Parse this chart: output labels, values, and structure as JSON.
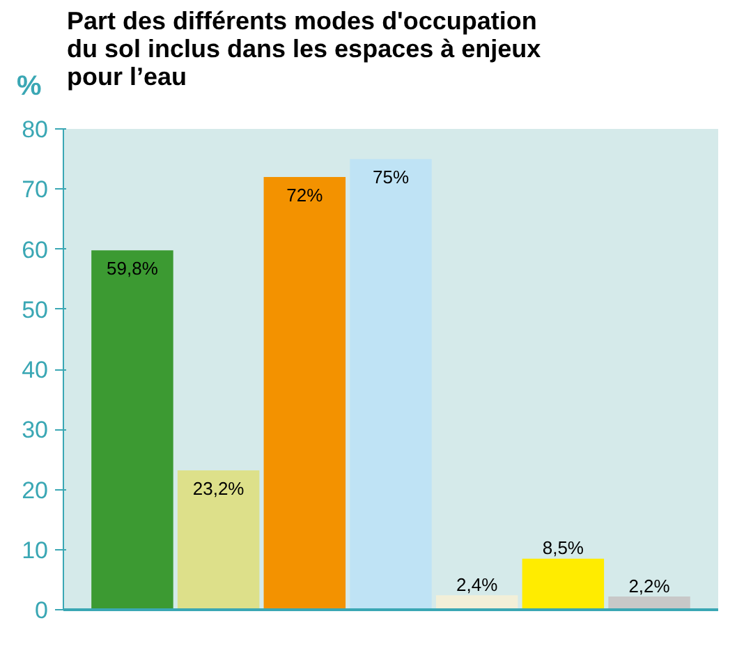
{
  "chart_data": {
    "type": "bar",
    "title": "Part des différents modes d'occupation\ndu sol inclus dans les espaces à enjeux\npour l’eau",
    "ylabel": "%",
    "categories": [
      null,
      null,
      null,
      null,
      null,
      null,
      null
    ],
    "values": [
      59.8,
      23.2,
      72,
      75,
      2.4,
      8.5,
      2.2
    ],
    "colors": [
      "#3c9a32",
      "#dde08a",
      "#f39200",
      "#bfe3f5",
      "#f2efd8",
      "#ffec00",
      "#c8c8c8"
    ],
    "value_labels": [
      "59,8%",
      "23,2%",
      "72%",
      "75%",
      "2,4%",
      "8,5%",
      "2,2%"
    ],
    "ylim": [
      0,
      80
    ],
    "yticks": [
      0,
      10,
      20,
      30,
      40,
      50,
      60,
      70,
      80
    ],
    "grid": false
  }
}
